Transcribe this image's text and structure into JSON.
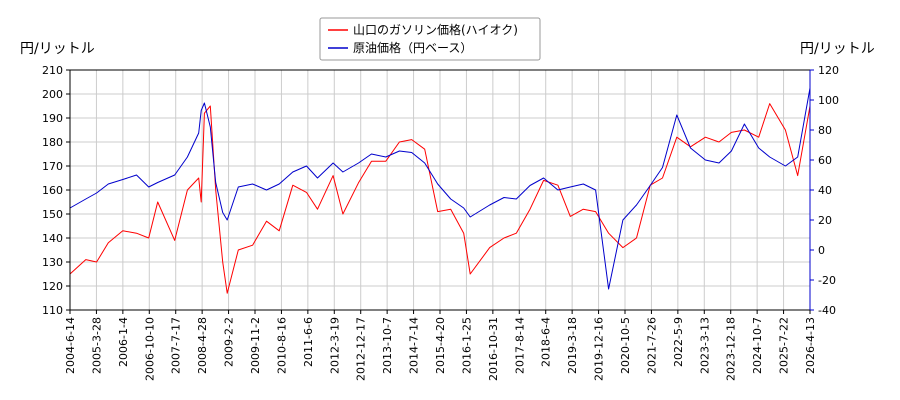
{
  "chart_data": {
    "type": "line",
    "ylabel_left": "円/リットル",
    "ylabel_right": "円/リットル",
    "legend_position": "top-center",
    "grid": true,
    "ylim_left": [
      110,
      210
    ],
    "ylim_right": [
      -40,
      120
    ],
    "yticks_left": [
      110,
      120,
      130,
      140,
      150,
      160,
      170,
      180,
      190,
      200,
      210
    ],
    "yticks_right": [
      -40,
      -20,
      0,
      20,
      40,
      60,
      80,
      100,
      120
    ],
    "xlim": [
      "2004-06-14",
      "2026-04-13"
    ],
    "xticks": [
      "2004-6-14",
      "2005-3-28",
      "2006-1-4",
      "2006-10-10",
      "2007-7-17",
      "2008-4-28",
      "2009-2-2",
      "2009-11-2",
      "2010-8-16",
      "2011-6-6",
      "2012-3-19",
      "2012-12-17",
      "2013-10-7",
      "2014-7-14",
      "2015-4-20",
      "2016-1-25",
      "2016-10-31",
      "2017-8-14",
      "2018-6-4",
      "2019-3-18",
      "2019-12-16",
      "2020-10-5",
      "2021-7-26",
      "2022-5-9",
      "2023-3-13",
      "2023-12-18",
      "2024-10-7",
      "2025-7-22",
      "2026-4-13"
    ],
    "series": [
      {
        "name": "山口のガソリン価格(ハイオク)",
        "color": "#ff0000",
        "axis": "left",
        "x": [
          "2004-06-14",
          "2004-12-01",
          "2005-03-28",
          "2005-08-01",
          "2006-01-04",
          "2006-06-01",
          "2006-10-10",
          "2007-01-15",
          "2007-07-17",
          "2007-12-01",
          "2008-04-01",
          "2008-04-28",
          "2008-06-01",
          "2008-08-04",
          "2008-10-01",
          "2008-12-15",
          "2009-02-02",
          "2009-06-01",
          "2009-11-02",
          "2010-04-01",
          "2010-08-16",
          "2011-01-10",
          "2011-06-06",
          "2011-10-03",
          "2012-03-19",
          "2012-07-02",
          "2012-12-17",
          "2013-05-06",
          "2013-10-07",
          "2014-03-03",
          "2014-07-14",
          "2014-12-01",
          "2015-04-20",
          "2015-09-07",
          "2016-01-25",
          "2016-04-04",
          "2016-10-31",
          "2017-04-03",
          "2017-08-14",
          "2018-01-08",
          "2018-06-04",
          "2018-11-05",
          "2019-03-18",
          "2019-08-05",
          "2019-12-16",
          "2020-05-04",
          "2020-10-05",
          "2021-03-01",
          "2021-07-26",
          "2021-12-06",
          "2022-05-09",
          "2022-10-03",
          "2023-03-13",
          "2023-08-07",
          "2023-12-18",
          "2024-05-06",
          "2024-10-07",
          "2025-02-03",
          "2025-07-22",
          "2025-12-01",
          "2026-04-13"
        ],
        "values": [
          125,
          131,
          130,
          138,
          143,
          142,
          140,
          155,
          139,
          160,
          165,
          155,
          192,
          195,
          160,
          130,
          117,
          135,
          137,
          147,
          143,
          162,
          159,
          152,
          166,
          150,
          163,
          172,
          172,
          180,
          181,
          177,
          151,
          152,
          142,
          125,
          136,
          140,
          142,
          152,
          164,
          162,
          149,
          152,
          151,
          142,
          136,
          140,
          162,
          165,
          182,
          178,
          182,
          180,
          184,
          185,
          182,
          196,
          185,
          166,
          195
        ]
      },
      {
        "name": "原油価格（円ベース）",
        "color": "#0000cc",
        "axis": "right",
        "x": [
          "2004-06-14",
          "2004-12-01",
          "2005-03-28",
          "2005-08-01",
          "2006-01-04",
          "2006-06-01",
          "2006-10-10",
          "2007-01-15",
          "2007-07-17",
          "2007-12-01",
          "2008-04-01",
          "2008-04-28",
          "2008-06-01",
          "2008-08-04",
          "2008-10-01",
          "2008-12-15",
          "2009-02-02",
          "2009-06-01",
          "2009-11-02",
          "2010-04-01",
          "2010-08-16",
          "2011-01-10",
          "2011-06-06",
          "2011-10-03",
          "2012-03-19",
          "2012-07-02",
          "2012-12-17",
          "2013-05-06",
          "2013-10-07",
          "2014-03-03",
          "2014-07-14",
          "2014-12-01",
          "2015-04-20",
          "2015-09-07",
          "2016-01-25",
          "2016-04-04",
          "2016-10-31",
          "2017-04-03",
          "2017-08-14",
          "2018-01-08",
          "2018-06-04",
          "2018-11-05",
          "2019-03-18",
          "2019-08-05",
          "2019-12-16",
          "2020-05-04",
          "2020-10-05",
          "2021-03-01",
          "2021-07-26",
          "2021-12-06",
          "2022-05-09",
          "2022-10-03",
          "2023-03-13",
          "2023-08-07",
          "2023-12-18",
          "2024-05-06",
          "2024-10-07",
          "2025-02-03",
          "2025-07-22",
          "2025-12-01",
          "2026-04-13"
        ],
        "values": [
          28,
          34,
          38,
          44,
          47,
          50,
          42,
          45,
          50,
          62,
          78,
          93,
          98,
          82,
          45,
          25,
          20,
          42,
          44,
          40,
          44,
          52,
          56,
          48,
          58,
          52,
          58,
          64,
          62,
          66,
          65,
          58,
          44,
          34,
          28,
          22,
          30,
          35,
          34,
          43,
          48,
          40,
          42,
          44,
          40,
          -26,
          20,
          30,
          43,
          55,
          90,
          68,
          60,
          58,
          66,
          84,
          68,
          62,
          56,
          62,
          108
        ]
      }
    ]
  }
}
